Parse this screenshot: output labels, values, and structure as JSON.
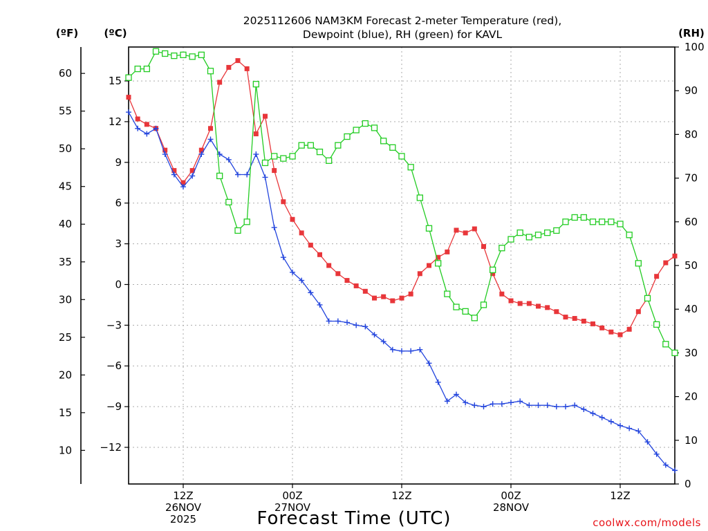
{
  "chart_data": {
    "type": "line",
    "title_line1": "2025112606 NAM3KM Forecast 2-meter Temperature (red),",
    "title_line2": "Dewpoint (blue), RH (green) for KAVL",
    "xlabel": "Forecast Time (UTC)",
    "credit": "coolwx.com/models",
    "units": {
      "fahrenheit": "(ºF)",
      "celsius": "(ºC)",
      "rh": "(RH)"
    },
    "x_range_hours": [
      0,
      60
    ],
    "y_left_celsius_range": [
      -14.7,
      17.5
    ],
    "y_right_rh_range": [
      0,
      100
    ],
    "y_left_ticks": [
      "15",
      "12",
      "9",
      "6",
      "3",
      "0",
      "−3",
      "−6",
      "−9",
      "−12"
    ],
    "y_left_tick_values": [
      15,
      12,
      9,
      6,
      3,
      0,
      -3,
      -6,
      -9,
      -12
    ],
    "y_far_left_ticks": [
      "60",
      "55",
      "50",
      "45",
      "40",
      "35",
      "30",
      "25",
      "20",
      "15",
      "10"
    ],
    "y_far_left_tick_values": [
      60,
      55,
      50,
      45,
      40,
      35,
      30,
      25,
      20,
      15,
      10
    ],
    "y_right_ticks": [
      "100",
      "90",
      "80",
      "70",
      "60",
      "50",
      "40",
      "30",
      "20",
      "10",
      "0"
    ],
    "y_right_tick_values": [
      100,
      90,
      80,
      70,
      60,
      50,
      40,
      30,
      20,
      10,
      0
    ],
    "x_ticks": [
      {
        "hour": 6,
        "label1": "12Z",
        "label2": "26NOV",
        "label3": "2025"
      },
      {
        "hour": 18,
        "label1": "00Z",
        "label2": "27NOV",
        "label3": ""
      },
      {
        "hour": 30,
        "label1": "12Z",
        "label2": "",
        "label3": ""
      },
      {
        "hour": 42,
        "label1": "00Z",
        "label2": "28NOV",
        "label3": ""
      },
      {
        "hour": 54,
        "label1": "12Z",
        "label2": "",
        "label3": ""
      }
    ],
    "x_hours": [
      0,
      1,
      2,
      3,
      4,
      5,
      6,
      7,
      8,
      9,
      10,
      11,
      12,
      13,
      14,
      15,
      16,
      17,
      18,
      19,
      20,
      21,
      22,
      23,
      24,
      25,
      26,
      27,
      28,
      29,
      30,
      31,
      32,
      33,
      34,
      35,
      36,
      37,
      38,
      39,
      40,
      41,
      42,
      43,
      44,
      45,
      46,
      47,
      48,
      49,
      50,
      51,
      52,
      53,
      54,
      55,
      56,
      57,
      58,
      59,
      60
    ],
    "series": [
      {
        "name": "2-meter Temperature",
        "unit": "°C",
        "color": "#e8363a",
        "marker": "square-filled",
        "values": [
          13.8,
          12.2,
          11.8,
          11.5,
          9.9,
          8.4,
          7.5,
          8.4,
          9.9,
          11.5,
          14.9,
          16.0,
          16.5,
          15.9,
          11.1,
          12.4,
          8.4,
          6.1,
          4.8,
          3.8,
          2.9,
          2.2,
          1.4,
          0.8,
          0.3,
          -0.1,
          -0.5,
          -1.0,
          -0.9,
          -1.2,
          -1.0,
          -0.7,
          0.8,
          1.4,
          2.0,
          2.4,
          4.0,
          3.8,
          4.1,
          2.8,
          0.8,
          -0.7,
          -1.2,
          -1.4,
          -1.4,
          -1.6,
          -1.7,
          -2.0,
          -2.4,
          -2.5,
          -2.7,
          -2.9,
          -3.2,
          -3.5,
          -3.7,
          -3.3,
          -2.0,
          -1.0,
          0.6,
          1.6,
          2.1
        ]
      },
      {
        "name": "Dewpoint",
        "unit": "°C",
        "color": "#2244dd",
        "marker": "plus",
        "values": [
          12.7,
          11.5,
          11.1,
          11.5,
          9.6,
          8.1,
          7.2,
          8.0,
          9.6,
          10.7,
          9.6,
          9.2,
          8.1,
          8.1,
          9.6,
          7.9,
          4.2,
          2.0,
          0.9,
          0.3,
          -0.6,
          -1.5,
          -2.7,
          -2.7,
          -2.8,
          -3.0,
          -3.1,
          -3.7,
          -4.2,
          -4.8,
          -4.9,
          -4.9,
          -4.8,
          -5.8,
          -7.2,
          -8.6,
          -8.1,
          -8.7,
          -8.9,
          -9.0,
          -8.8,
          -8.8,
          -8.7,
          -8.6,
          -8.9,
          -8.9,
          -8.9,
          -9.0,
          -9.0,
          -8.9,
          -9.2,
          -9.5,
          -9.8,
          -10.1,
          -10.4,
          -10.6,
          -10.8,
          -11.6,
          -12.5,
          -13.3,
          -13.7
        ]
      },
      {
        "name": "RH",
        "unit": "%",
        "color": "#22cc22",
        "marker": "square-open",
        "values": [
          93,
          95,
          95,
          99,
          98.5,
          98,
          98.2,
          97.8,
          98.2,
          94.5,
          70.5,
          64.5,
          58,
          60,
          91.5,
          73.5,
          75,
          74.5,
          75,
          77.5,
          77.5,
          76,
          74,
          77.5,
          79.5,
          81,
          82.5,
          81.5,
          78.5,
          77,
          75,
          72.5,
          65.5,
          58.5,
          50.5,
          43.5,
          40.5,
          39.5,
          38,
          41,
          49,
          54,
          56,
          57.5,
          56.5,
          57,
          57.5,
          58,
          60,
          61,
          61,
          60,
          60,
          60,
          59.5,
          57,
          50.5,
          42.5,
          36.5,
          32,
          30
        ]
      }
    ]
  }
}
